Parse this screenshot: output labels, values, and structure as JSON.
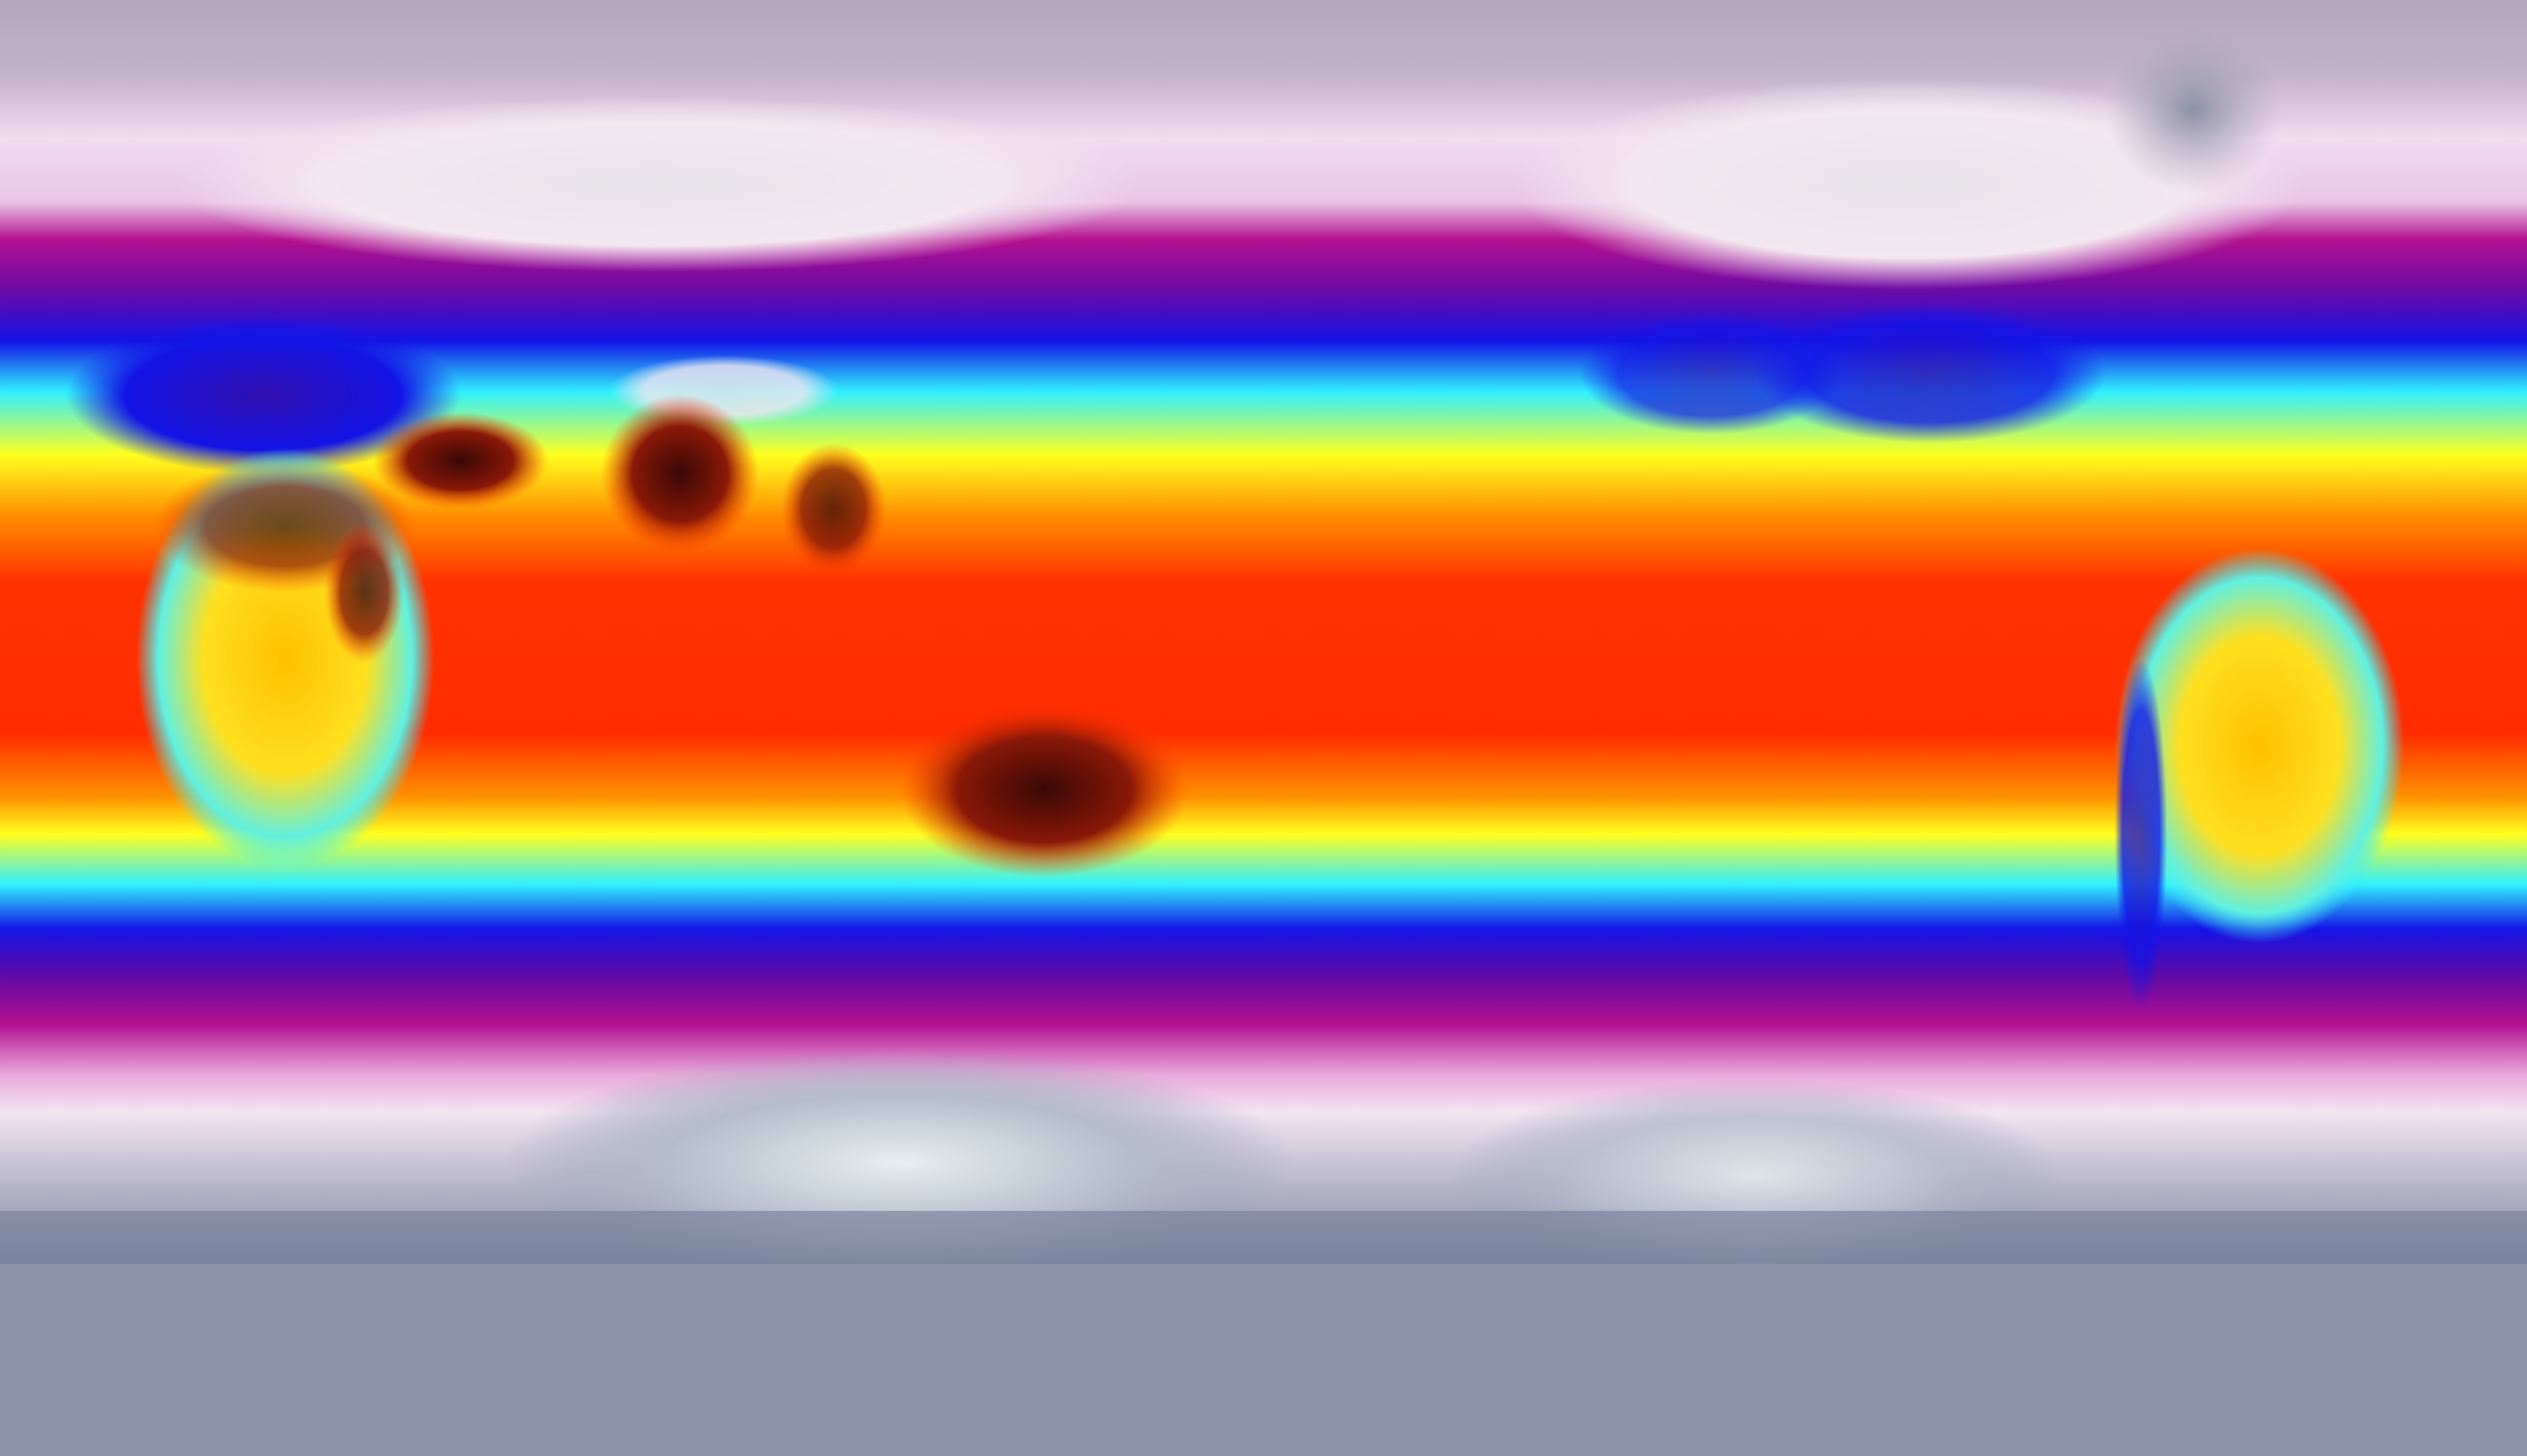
{
  "map": {
    "projection": "equirectangular",
    "variable_shown": "temperature",
    "color_scale": [
      "#8c92aa",
      "#d8d2e0",
      "#f4dcf2",
      "#b0108f",
      "#5a0aa8",
      "#1010e8",
      "#20e8ff",
      "#ffff20",
      "#ff8000",
      "#ff2a00",
      "#c01000",
      "#3a0a08"
    ],
    "colors": {
      "polar_north": "#b4a6bd",
      "polar_south": "#7c86a2",
      "cold_pink": "#f2d8ef",
      "magenta": "#b3108f",
      "blue": "#1414e6",
      "cyan": "#30f0ff",
      "yellow": "#ffff1e",
      "tropical_red": "#ff3300",
      "hot_land": "#5a0c06"
    }
  }
}
